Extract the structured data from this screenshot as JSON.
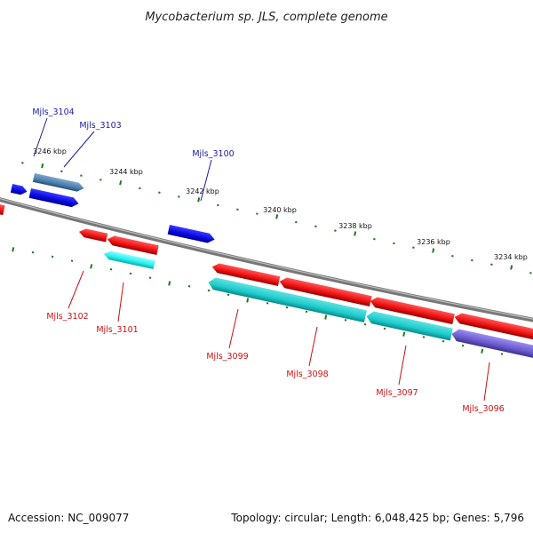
{
  "title": "Mycobacterium sp. JLS, complete genome",
  "footer": {
    "accession": "Accession: NC_009077",
    "summary": "Topology: circular; Length: 6,048,425 bp; Genes: 5,796"
  },
  "colors": {
    "backbone": "#888888",
    "tick": "#1f7a1f",
    "label_forward": "#1a1aa6",
    "label_reverse": "#cc1111",
    "gene_blue": "#0a0ae6",
    "gene_steel": "#4a7fb0",
    "gene_red": "#ee1111",
    "gene_cyan": "#1ccccc",
    "gene_brightcyan": "#22eeee",
    "gene_purple": "#6a5acd"
  },
  "ticks": [
    {
      "label": "3246 kbp"
    },
    {
      "label": "3244 kbp"
    },
    {
      "label": "3242 kbp"
    },
    {
      "label": "3240 kbp"
    },
    {
      "label": "3238 kbp"
    },
    {
      "label": "3236 kbp"
    },
    {
      "label": "3234 kbp"
    }
  ],
  "genes": [
    {
      "name": "Mjls_3104",
      "strand": "+",
      "color": "gene_steel"
    },
    {
      "name": "Mjls_3103",
      "strand": "+",
      "color": "gene_blue"
    },
    {
      "name": "Mjls_3100",
      "strand": "+",
      "color": "gene_blue"
    },
    {
      "name": "Mjls_3102",
      "strand": "-",
      "color": "gene_red"
    },
    {
      "name": "Mjls_3101",
      "strand": "-",
      "color": "gene_brightcyan"
    },
    {
      "name": "Mjls_3099",
      "strand": "-",
      "color": "gene_cyan"
    },
    {
      "name": "Mjls_3098",
      "strand": "-",
      "color": "gene_cyan"
    },
    {
      "name": "Mjls_3097",
      "strand": "-",
      "color": "gene_cyan"
    },
    {
      "name": "Mjls_3096",
      "strand": "-",
      "color": "gene_purple"
    }
  ]
}
